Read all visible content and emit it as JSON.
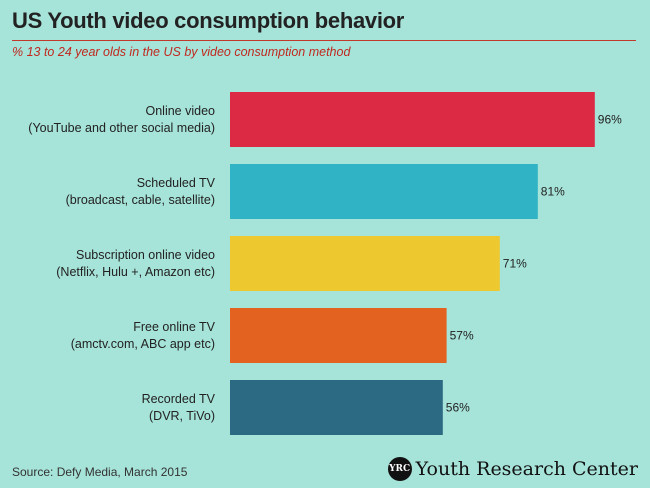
{
  "chart_data": {
    "type": "bar",
    "orientation": "horizontal",
    "title": "US Youth video consumption behavior",
    "subtitle": "% 13 to 24 year olds in the US by video consumption method",
    "categories": [
      "Online video\n(YouTube and other social media)",
      "Scheduled TV\n(broadcast, cable, satellite)",
      "Subscription online video\n(Netflix, Hulu +, Amazon etc)",
      "Free online TV\n(amctv.com, ABC app etc)",
      "Recorded TV\n(DVR, TiVo)"
    ],
    "values": [
      96,
      81,
      71,
      57,
      56
    ],
    "value_labels": [
      "96%",
      "81%",
      "71%",
      "57%",
      "56%"
    ],
    "colors": [
      "#dc2a45",
      "#2fb3c5",
      "#eec82f",
      "#e3621f",
      "#2b6a82"
    ],
    "xlim": [
      0,
      100
    ],
    "grid": false,
    "legend": "none"
  },
  "footer": {
    "source": "Source: Defy Media, March 2015",
    "brand_logo": "YRC",
    "brand_name": "Youth Research Center"
  }
}
